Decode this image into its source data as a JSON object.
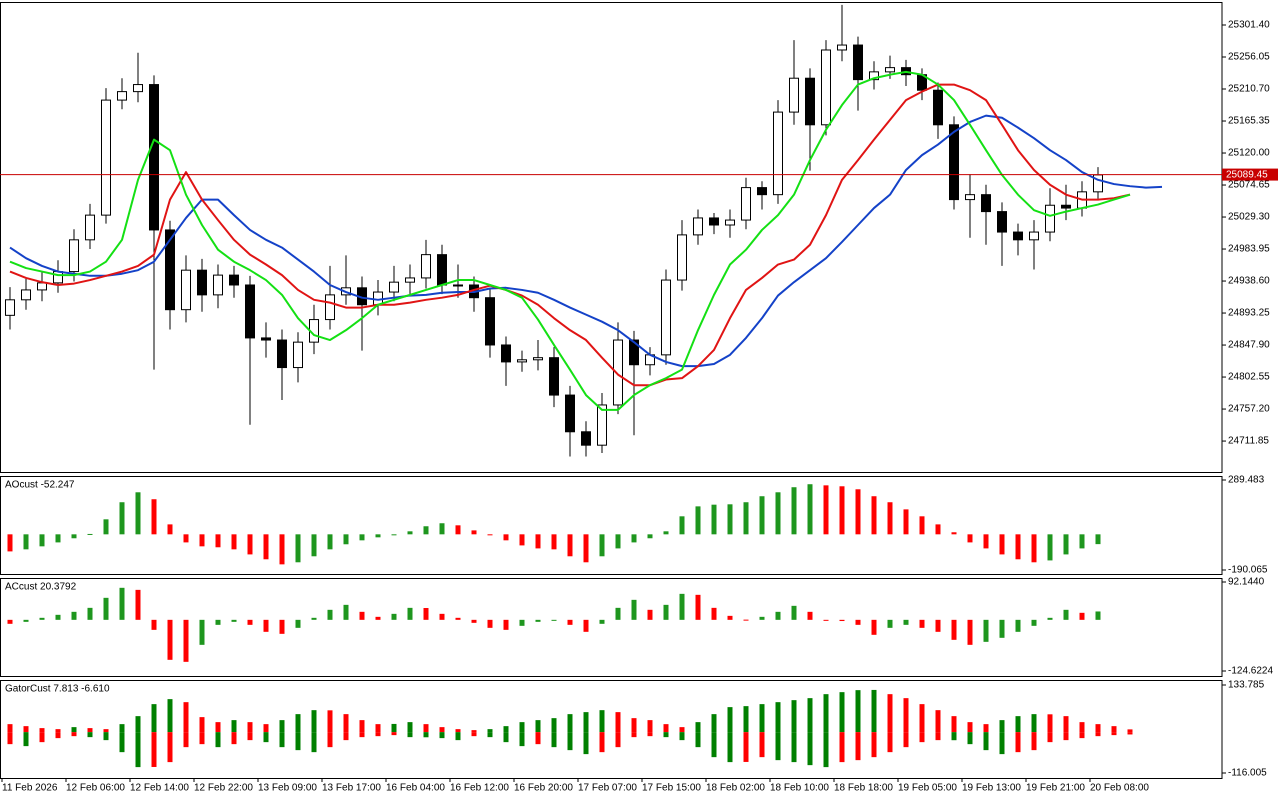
{
  "chart_data": [
    {
      "type": "candlestick",
      "ylim": [
        24668,
        25334
      ],
      "yticks": [
        {
          "value": 25301.4,
          "label": "25301.40"
        },
        {
          "value": 25256.05,
          "label": "25256.05"
        },
        {
          "value": 25210.7,
          "label": "25210.70"
        },
        {
          "value": 25165.35,
          "label": "25165.35"
        },
        {
          "value": 25120,
          "label": "25120.00"
        },
        {
          "value": 25074.65,
          "label": "25074.65"
        },
        {
          "value": 25029.3,
          "label": "25029.30"
        },
        {
          "value": 24983.95,
          "label": "24983.95"
        },
        {
          "value": 24938.6,
          "label": "24938.60"
        },
        {
          "value": 24893.25,
          "label": "24893.25"
        },
        {
          "value": 24847.9,
          "label": "24847.90"
        },
        {
          "value": 24802.55,
          "label": "24802.55"
        },
        {
          "value": 24757.2,
          "label": "24757.20"
        },
        {
          "value": 24711.85,
          "label": "24711.85"
        }
      ],
      "up_color": "#ffffff",
      "down_color": "#000000",
      "open": [
        24890,
        24912,
        24926,
        24936,
        24952,
        24997,
        25032,
        25195,
        25207,
        25217,
        25011,
        24898,
        24954,
        24919,
        24947,
        24933,
        24858,
        24855,
        24816,
        24852,
        24884,
        24919,
        24929,
        24905,
        24923,
        24937,
        24943,
        24976,
        24933,
        24933,
        24915,
        24848,
        24824,
        24827,
        24830,
        24777,
        24725,
        24706,
        24763,
        24855,
        24820,
        24834,
        24940,
        25004,
        25028,
        25018,
        25025,
        25071,
        25061,
        25178,
        25226,
        25160,
        25266,
        25273,
        25224,
        25235,
        25241,
        25231,
        25209,
        25160,
        25054,
        25061,
        25037,
        25008,
        24997,
        25008,
        25046,
        25042,
        25065,
        null,
        null,
        null,
        null
      ],
      "high": [
        24930,
        24942,
        24952,
        24968,
        25012,
        25048,
        25212,
        25226,
        25262,
        25230,
        25024,
        24975,
        24970,
        24962,
        24960,
        24946,
        24880,
        24870,
        24866,
        24905,
        24960,
        24975,
        24945,
        24940,
        24960,
        24962,
        24997,
        24990,
        24962,
        24945,
        24928,
        24860,
        24840,
        24855,
        24845,
        24790,
        24740,
        24780,
        24880,
        24868,
        24845,
        24955,
        25025,
        25040,
        25035,
        25040,
        25085,
        25080,
        25195,
        25280,
        25240,
        25280,
        25330,
        25285,
        25250,
        25258,
        25252,
        25240,
        25220,
        25172,
        25090,
        25075,
        25050,
        25020,
        25025,
        25070,
        25075,
        25080,
        25100,
        null,
        null,
        null,
        null
      ],
      "low": [
        24870,
        24898,
        24910,
        24922,
        24938,
        24984,
        25020,
        25182,
        25192,
        24813,
        24870,
        24880,
        24895,
        24900,
        24915,
        24735,
        24830,
        24770,
        24795,
        24835,
        24870,
        24905,
        24840,
        24890,
        24910,
        24920,
        24928,
        24920,
        24915,
        24895,
        24830,
        24790,
        24810,
        24812,
        24760,
        24690,
        24690,
        24695,
        24750,
        24720,
        24805,
        24820,
        24925,
        24990,
        25005,
        25000,
        25012,
        25040,
        25048,
        25160,
        25095,
        25145,
        25250,
        25180,
        25210,
        25225,
        25215,
        25195,
        25140,
        25040,
        25000,
        24990,
        24960,
        24975,
        24955,
        24995,
        25025,
        25030,
        25055,
        null,
        null,
        null,
        null
      ],
      "close": [
        24912,
        24926,
        24936,
        24952,
        24997,
        25032,
        25195,
        25207,
        25217,
        25011,
        24898,
        24954,
        24919,
        24947,
        24933,
        24858,
        24855,
        24816,
        24852,
        24884,
        24919,
        24929,
        24905,
        24923,
        24937,
        24943,
        24976,
        24933,
        24933,
        24915,
        24848,
        24824,
        24827,
        24830,
        24777,
        24725,
        24706,
        24763,
        24855,
        24820,
        24834,
        24940,
        25004,
        25028,
        25018,
        25025,
        25071,
        25061,
        25178,
        25226,
        25160,
        25266,
        25273,
        25224,
        25235,
        25241,
        25231,
        25209,
        25160,
        25054,
        25061,
        25037,
        25008,
        24997,
        25008,
        25046,
        25042,
        25065,
        25089,
        null,
        null,
        null,
        null
      ],
      "overlays": [
        {
          "color": "#1442c8",
          "values": [
            24986,
            24971,
            24960,
            24952,
            24949,
            24946,
            24946,
            24949,
            24954,
            24966,
            24997,
            25028,
            25054,
            25054,
            25032,
            25011,
            24997,
            24986,
            24969,
            24952,
            24933,
            24923,
            24915,
            24912,
            24915,
            24918,
            24919,
            24922,
            24923,
            24923,
            24928,
            24929,
            24926,
            24922,
            24912,
            24901,
            24891,
            24881,
            24869,
            24852,
            24834,
            24824,
            24818,
            24818,
            24821,
            24834,
            24858,
            24886,
            24918,
            24937,
            24954,
            24971,
            24994,
            25018,
            25042,
            25061,
            25096,
            25117,
            25132,
            25150,
            25164,
            25173,
            25170,
            25156,
            25141,
            25124,
            25110,
            25093,
            25082,
            25076,
            25073,
            25071,
            25072
          ]
        },
        {
          "color": "#e01414",
          "values": [
            24952,
            24943,
            24937,
            24933,
            24935,
            24940,
            24946,
            24952,
            24960,
            24976,
            25054,
            25093,
            25054,
            25025,
            24997,
            24976,
            24962,
            24947,
            24926,
            24912,
            24908,
            24901,
            24901,
            24905,
            24905,
            24908,
            24912,
            24915,
            24919,
            24926,
            24932,
            24926,
            24918,
            24905,
            24886,
            24869,
            24855,
            24830,
            24806,
            24791,
            24791,
            24799,
            24801,
            24818,
            24841,
            24886,
            24926,
            24943,
            24962,
            24969,
            24990,
            25032,
            25082,
            25110,
            25139,
            25167,
            25195,
            25207,
            25217,
            25217,
            25209,
            25195,
            25160,
            25124,
            25096,
            25075,
            25061,
            25054,
            25054,
            25056,
            25061,
            null,
            null
          ]
        },
        {
          "color": "#14e014",
          "values": [
            24966,
            24957,
            24952,
            24947,
            24947,
            24952,
            24966,
            24997,
            25082,
            25139,
            25124,
            25061,
            25018,
            24983,
            24966,
            24954,
            24940,
            24919,
            24886,
            24862,
            24855,
            24869,
            24886,
            24905,
            24912,
            24919,
            24926,
            24933,
            24940,
            24940,
            24933,
            24926,
            24915,
            24884,
            24848,
            24813,
            24777,
            24756,
            24756,
            24777,
            24791,
            24801,
            24813,
            24869,
            24919,
            24962,
            24983,
            25011,
            25032,
            25061,
            25110,
            25153,
            25188,
            25217,
            25226,
            25231,
            25235,
            25231,
            25217,
            25195,
            25160,
            25124,
            25089,
            25061,
            25039,
            25031,
            25037,
            25042,
            25047,
            25054,
            25061,
            null,
            null
          ]
        }
      ],
      "last_price": 25089.45,
      "last_price_color": "#c80000"
    },
    {
      "type": "bar",
      "title": "AOcust -52.247",
      "ylim": [
        -211.4,
        310.8
      ],
      "yticks": [
        289.483,
        -190.065
      ],
      "series": [
        {
          "up_color": "#1e961e",
          "down_color": "#ff0000",
          "values": [
            -91,
            -80,
            -64,
            -43,
            -21,
            2,
            80,
            171,
            224,
            187,
            53,
            -43,
            -64,
            -69,
            -80,
            -107,
            -133,
            -160,
            -149,
            -117,
            -80,
            -53,
            -32,
            -16,
            -5,
            16,
            43,
            59,
            48,
            21,
            -5,
            -32,
            -59,
            -75,
            -80,
            -117,
            -149,
            -117,
            -75,
            -43,
            -21,
            16,
            96,
            149,
            158,
            160,
            171,
            203,
            224,
            251,
            267,
            261,
            256,
            240,
            203,
            171,
            133,
            96,
            53,
            11,
            -43,
            -75,
            -107,
            -133,
            -149,
            -139,
            -107,
            -75,
            -52.247,
            null,
            null,
            null,
            null
          ]
        }
      ]
    },
    {
      "type": "bar",
      "title": "ACcust 20.3792",
      "ylim": [
        -136.8,
        101.9
      ],
      "yticks": [
        {
          "value": 92.144,
          "label": "92.1440"
        },
        -124.6224
      ],
      "series": [
        {
          "up_color": "#1e961e",
          "down_color": "#ff0000",
          "values": [
            -9.7,
            -4.9,
            4.9,
            12.2,
            19.5,
            29.2,
            53.6,
            78,
            73,
            -24.4,
            -97.4,
            -102.3,
            -60.9,
            -12.2,
            -4.9,
            -12.2,
            -29.2,
            -34.1,
            -19.5,
            4.9,
            24.4,
            36.5,
            19.5,
            7.3,
            14.6,
            29.2,
            28.8,
            14.6,
            4.9,
            -7.3,
            -19.5,
            -24.4,
            -14.6,
            -4.9,
            -2.4,
            -12.2,
            -29.2,
            -9.7,
            29.2,
            48.7,
            24.4,
            36.5,
            63.3,
            60.9,
            29.2,
            9.7,
            0.5,
            7.3,
            19.5,
            34.1,
            19.5,
            -2.4,
            -2.9,
            -12.2,
            -36.5,
            -19.5,
            -12.2,
            -19.5,
            -29.2,
            -48.7,
            -60.9,
            -53.6,
            -43.8,
            -29.2,
            -14.6,
            4.9,
            24.4,
            17.1,
            20.3792,
            null,
            null,
            null,
            null
          ]
        }
      ]
    },
    {
      "type": "gator",
      "title": "GatorCust 7.813 -6.610",
      "ylim": [
        -130.2,
        148.0
      ],
      "yticks": [
        133.785,
        -116.005
      ],
      "series": [
        {
          "up_color": "#008000",
          "down_color": "#ff0000",
          "values": [
            22.7,
            17.0,
            11.4,
            8.5,
            14.2,
            11.4,
            8.5,
            22.7,
            45.4,
            79.5,
            93.7,
            85.1,
            42.6,
            28.4,
            34.1,
            28.4,
            22.7,
            34.1,
            51.1,
            62.4,
            61.9,
            51.1,
            34.1,
            22.7,
            23.3,
            28.4,
            22.7,
            14.2,
            8.5,
            5.7,
            8.5,
            17.0,
            28.4,
            34.1,
            39.7,
            51.1,
            56.8,
            62.4,
            56.8,
            39.7,
            34.1,
            22.7,
            14.2,
            28.4,
            51.1,
            71.0,
            73.8,
            79.5,
            85.1,
            90.8,
            96.5,
            107.8,
            113.5,
            119.2,
            119.8,
            107.8,
            96.5,
            79.5,
            62.4,
            45.4,
            28.4,
            22.7,
            34.1,
            45.4,
            51.1,
            50.6,
            45.4,
            28.4,
            22.7,
            17.0,
            7.813,
            null,
            null
          ]
        },
        {
          "up_color": "#008000",
          "down_color": "#ff0000",
          "values": [
            -34.1,
            -39.7,
            -28.4,
            -17.0,
            -11.4,
            -14.2,
            -22.7,
            -56.8,
            -99.3,
            -98.9,
            -85.1,
            -42.6,
            -34.1,
            -42.6,
            -34.1,
            -22.7,
            -28.4,
            -42.6,
            -51.1,
            -56.8,
            -42.6,
            -22.7,
            -14.2,
            -11.4,
            -8.5,
            -14.2,
            -14.6,
            -17.0,
            -22.7,
            -11.4,
            -14.2,
            -28.4,
            -39.7,
            -34.1,
            -42.6,
            -51.1,
            -62.4,
            -56.8,
            -42.6,
            -14.2,
            -11.4,
            -14.2,
            -22.7,
            -42.6,
            -71.0,
            -85.1,
            -84.6,
            -71.0,
            -79.5,
            -85.1,
            -93.7,
            -99.3,
            -85.1,
            -79.5,
            -71.0,
            -56.8,
            -42.6,
            -28.4,
            -22.7,
            -22.9,
            -34.1,
            -51.1,
            -62.4,
            -56.8,
            -51.1,
            -28.4,
            -22.7,
            -17.0,
            -11.4,
            -8.5,
            -6.61,
            null,
            null
          ]
        }
      ],
      "categories": [
        "11 Feb 2026",
        null,
        null,
        null,
        "12 Feb 06:00",
        null,
        null,
        null,
        "12 Feb 14:00",
        null,
        null,
        null,
        "12 Feb 22:00",
        null,
        null,
        null,
        "13 Feb 09:00",
        null,
        null,
        null,
        "13 Feb 17:00",
        null,
        null,
        null,
        "16 Feb 04:00",
        null,
        null,
        null,
        "16 Feb 12:00",
        null,
        null,
        null,
        "16 Feb 20:00",
        null,
        null,
        null,
        "17 Feb 07:00",
        null,
        null,
        null,
        "17 Feb 15:00",
        null,
        null,
        null,
        "18 Feb 02:00",
        null,
        null,
        null,
        "18 Feb 10:00",
        null,
        null,
        null,
        "18 Feb 18:00",
        null,
        null,
        null,
        "19 Feb 05:00",
        null,
        null,
        null,
        "19 Feb 13:00",
        null,
        null,
        null,
        "19 Feb 21:00",
        null,
        null,
        null,
        "20 Feb 08:00",
        null,
        null,
        null,
        null
      ]
    }
  ]
}
